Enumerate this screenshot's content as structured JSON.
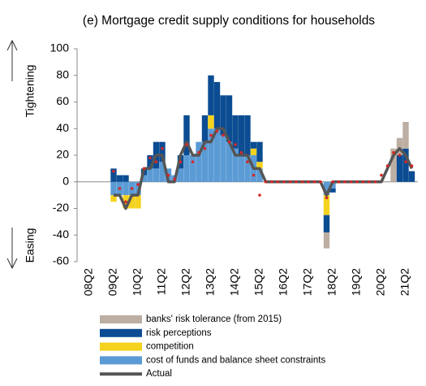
{
  "chart_data": {
    "type": "bar",
    "title": "(e) Mortgage credit supply conditions for households",
    "y_label_top": "Tightening",
    "y_label_bottom": "Easing",
    "categories": [
      "08Q2",
      null,
      null,
      null,
      "09Q2",
      null,
      null,
      null,
      "10Q2",
      null,
      null,
      null,
      "11Q2",
      null,
      null,
      null,
      "12Q2",
      null,
      null,
      null,
      "13Q2",
      null,
      null,
      null,
      "14Q2",
      null,
      null,
      null,
      "15Q2",
      null,
      null,
      null,
      "16Q2",
      null,
      null,
      null,
      "17Q2",
      null,
      null,
      null,
      "18Q2",
      null,
      null,
      null,
      "19Q2",
      null,
      null,
      null,
      "20Q2",
      null,
      null,
      null,
      "21Q2",
      null
    ],
    "ylim": [
      -60,
      100
    ],
    "yticks": [
      -60,
      -40,
      -20,
      0,
      20,
      40,
      60,
      80,
      100
    ],
    "series": [
      {
        "name": "cost of funds and balance sheet constraints",
        "color": "#5b9bd5",
        "kind": "bar",
        "values": [
          null,
          null,
          null,
          null,
          -10,
          -10,
          -10,
          -10,
          -10,
          5,
          10,
          10,
          15,
          10,
          5,
          10,
          20,
          20,
          30,
          30,
          40,
          40,
          35,
          30,
          25,
          20,
          20,
          20,
          10,
          0,
          0,
          0,
          0,
          0,
          0,
          0,
          0,
          0,
          0,
          -10,
          -5,
          0,
          0,
          0,
          0,
          0,
          0,
          0,
          0,
          0,
          0,
          0,
          0,
          0
        ]
      },
      {
        "name": "competition",
        "color": "#f5d21e",
        "kind": "bar",
        "values": [
          null,
          null,
          null,
          null,
          -5,
          0,
          -10,
          -10,
          -10,
          0,
          0,
          0,
          0,
          0,
          0,
          0,
          0,
          0,
          0,
          0,
          10,
          0,
          0,
          0,
          0,
          0,
          0,
          5,
          5,
          0,
          0,
          0,
          0,
          0,
          0,
          0,
          0,
          0,
          0,
          -15,
          0,
          0,
          0,
          0,
          0,
          0,
          0,
          0,
          0,
          0,
          0,
          0,
          0,
          0
        ]
      },
      {
        "name": "risk perceptions",
        "color": "#0b4c92",
        "kind": "bar",
        "values": [
          null,
          null,
          null,
          null,
          10,
          5,
          5,
          0,
          0,
          5,
          10,
          20,
          15,
          0,
          0,
          10,
          30,
          0,
          0,
          20,
          30,
          35,
          30,
          35,
          25,
          30,
          30,
          5,
          15,
          0,
          0,
          0,
          0,
          0,
          0,
          0,
          0,
          0,
          0,
          -13,
          -3,
          0,
          0,
          0,
          0,
          0,
          0,
          0,
          0,
          0,
          0,
          20,
          25,
          8
        ]
      },
      {
        "name": "banks' risk tolerance (from 2015)",
        "color": "#bcaea2",
        "kind": "bar",
        "values": [
          null,
          null,
          null,
          null,
          0,
          0,
          0,
          0,
          0,
          0,
          0,
          0,
          0,
          0,
          0,
          0,
          0,
          0,
          0,
          0,
          0,
          0,
          0,
          0,
          0,
          0,
          0,
          0,
          0,
          0,
          0,
          0,
          0,
          0,
          0,
          0,
          0,
          0,
          0,
          -12,
          0,
          0,
          0,
          0,
          0,
          0,
          0,
          0,
          0,
          0,
          25,
          13,
          20,
          0
        ]
      },
      {
        "name": "Actual",
        "color": "#555555",
        "kind": "line",
        "values": [
          null,
          null,
          null,
          null,
          -10,
          -10,
          -20,
          -10,
          -10,
          10,
          10,
          20,
          20,
          0,
          0,
          20,
          30,
          20,
          20,
          30,
          30,
          40,
          40,
          30,
          20,
          20,
          20,
          10,
          10,
          0,
          0,
          0,
          0,
          0,
          0,
          0,
          0,
          0,
          0,
          -10,
          0,
          0,
          0,
          0,
          0,
          0,
          0,
          0,
          0,
          10,
          20,
          25,
          20,
          10
        ]
      },
      {
        "color": "#d62728",
        "kind": "dots",
        "values": [
          null,
          null,
          null,
          null,
          8,
          -5,
          -15,
          -5,
          -2,
          10,
          18,
          15,
          25,
          5,
          2,
          15,
          28,
          15,
          22,
          25,
          35,
          38,
          35,
          30,
          28,
          22,
          15,
          5,
          -10,
          0,
          0,
          0,
          0,
          0,
          0,
          0,
          0,
          0,
          0,
          -12,
          0,
          0,
          0,
          0,
          0,
          0,
          0,
          0,
          5,
          12,
          22,
          20,
          15,
          12
        ]
      }
    ]
  }
}
